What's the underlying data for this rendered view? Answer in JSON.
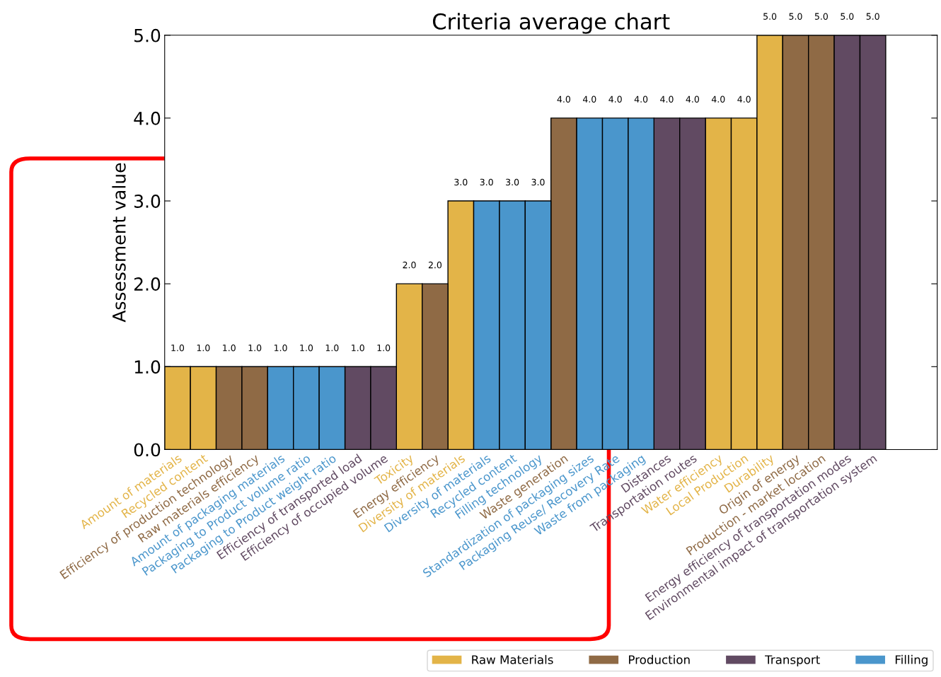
{
  "chart_data": {
    "type": "bar",
    "title": "Criteria average chart",
    "ylabel": "Assessment value",
    "categories": [
      "Amount of materials",
      "Recycled content",
      "Efficiency of production technology",
      "Raw materials efficiency",
      "Amount of packaging materials",
      "Packaging to Product volume ratio",
      "Packaging to Product weight ratio",
      "Efficiency of transported load",
      "Efficiency of occupied volume",
      "Toxicity",
      "Energy efficiency",
      "Diversity of materials",
      "Diversity of materials",
      "Recycled content",
      "Filling technology",
      "Waste generation",
      "Standardization of packaging sizes",
      "Packaging Reuse/ Recovery Rate",
      "Waste from packaging",
      "Distances",
      "Transportation routes",
      "Water efficiency",
      "Local Production",
      "Durability",
      "Origin of energy",
      "Production - market location",
      "Energy efficiency of transportation modes",
      "Environmental impact of transportation system"
    ],
    "series": [
      {
        "name": "Raw Materials",
        "color": "#e3b448",
        "values": [
          1.0,
          1.0,
          null,
          null,
          null,
          null,
          null,
          null,
          null,
          2.0,
          null,
          3.0,
          null,
          null,
          null,
          null,
          null,
          null,
          null,
          null,
          null,
          4.0,
          4.0,
          5.0,
          null,
          null,
          null,
          null
        ],
        "value_labels": [
          "1.0",
          "1.0",
          null,
          null,
          null,
          null,
          null,
          null,
          null,
          "2.0",
          null,
          "3.0",
          null,
          null,
          null,
          null,
          null,
          null,
          null,
          null,
          null,
          "4.0",
          "4.0",
          "5.0",
          null,
          null,
          null,
          null
        ]
      },
      {
        "name": "Production",
        "color": "#8f6a45",
        "values": [
          null,
          null,
          1.0,
          1.0,
          null,
          null,
          null,
          null,
          null,
          null,
          2.0,
          null,
          null,
          null,
          null,
          4.0,
          null,
          null,
          null,
          null,
          null,
          null,
          null,
          null,
          5.0,
          5.0,
          null,
          null
        ],
        "value_labels": [
          null,
          null,
          "1.0",
          "1.0",
          null,
          null,
          null,
          null,
          null,
          null,
          "2.0",
          null,
          null,
          null,
          null,
          "4.0",
          null,
          null,
          null,
          null,
          null,
          null,
          null,
          null,
          "5.0",
          "5.0",
          null,
          null
        ]
      },
      {
        "name": "Transport",
        "color": "#614a62",
        "values": [
          null,
          null,
          null,
          null,
          null,
          null,
          null,
          1.0,
          1.0,
          null,
          null,
          null,
          null,
          null,
          null,
          null,
          null,
          null,
          null,
          4.0,
          4.0,
          null,
          null,
          null,
          null,
          null,
          5.0,
          5.0
        ],
        "value_labels": [
          null,
          null,
          null,
          null,
          null,
          null,
          null,
          "1.0",
          "1.0",
          null,
          null,
          null,
          null,
          null,
          null,
          null,
          null,
          null,
          null,
          "4.0",
          "4.0",
          null,
          null,
          null,
          null,
          null,
          "5.0",
          "5.0"
        ]
      },
      {
        "name": "Filling",
        "color": "#4a96cc",
        "values": [
          null,
          null,
          null,
          null,
          1.0,
          1.0,
          1.0,
          null,
          null,
          null,
          null,
          null,
          3.0,
          3.0,
          3.0,
          null,
          4.0,
          4.0,
          4.0,
          null,
          null,
          null,
          null,
          null,
          null,
          null,
          null,
          null
        ],
        "value_labels": [
          null,
          null,
          null,
          null,
          "1.0",
          "1.0",
          "1.0",
          null,
          null,
          null,
          null,
          null,
          "3.0",
          "3.0",
          "3.0",
          null,
          "4.0",
          "4.0",
          "4.0",
          null,
          null,
          null,
          null,
          null,
          null,
          null,
          null,
          null
        ]
      }
    ],
    "ylim": [
      0,
      5
    ],
    "yticks": [
      {
        "value": 0,
        "label": "0.0"
      },
      {
        "value": 1,
        "label": "1.0"
      },
      {
        "value": 2,
        "label": "2.0"
      },
      {
        "value": 3,
        "label": "3.0"
      },
      {
        "value": 4,
        "label": "4.0"
      },
      {
        "value": 5,
        "label": "5.0"
      }
    ],
    "grid": false,
    "legend": "bottom right"
  }
}
